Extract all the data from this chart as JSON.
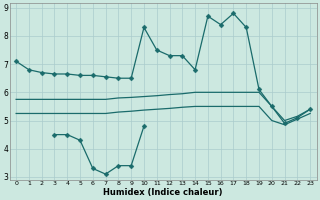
{
  "xlabel": "Humidex (Indice chaleur)",
  "x": [
    0,
    1,
    2,
    3,
    4,
    5,
    6,
    7,
    8,
    9,
    10,
    11,
    12,
    13,
    14,
    15,
    16,
    17,
    18,
    19,
    20,
    21,
    22,
    23
  ],
  "line1": [
    7.1,
    6.8,
    6.7,
    6.65,
    6.65,
    6.6,
    6.6,
    6.55,
    6.5,
    6.5,
    8.3,
    7.5,
    7.3,
    7.3,
    6.8,
    8.7,
    8.4,
    8.8,
    8.3,
    6.1,
    5.5,
    4.9,
    5.1,
    5.4
  ],
  "line2": [
    5.75,
    5.75,
    5.75,
    5.75,
    5.75,
    5.75,
    5.75,
    5.75,
    5.8,
    5.82,
    5.85,
    5.88,
    5.92,
    5.95,
    6.0,
    6.0,
    6.0,
    6.0,
    6.0,
    6.0,
    5.5,
    5.0,
    5.15,
    5.4
  ],
  "line4": [
    5.25,
    5.25,
    5.25,
    5.25,
    5.25,
    5.25,
    5.25,
    5.25,
    5.3,
    5.33,
    5.37,
    5.4,
    5.43,
    5.47,
    5.5,
    5.5,
    5.5,
    5.5,
    5.5,
    5.5,
    5.0,
    4.85,
    5.05,
    5.25
  ],
  "line3_x": [
    3,
    4,
    5,
    6,
    7,
    8,
    9,
    10
  ],
  "line3_y": [
    4.5,
    4.5,
    4.3,
    3.3,
    3.1,
    3.4,
    3.4,
    4.8
  ],
  "ylim": [
    2.9,
    9.15
  ],
  "yticks": [
    3,
    4,
    5,
    6,
    7,
    8,
    9
  ],
  "xlim": [
    -0.5,
    23.5
  ],
  "xticks": [
    0,
    1,
    2,
    3,
    4,
    5,
    6,
    7,
    8,
    9,
    10,
    11,
    12,
    13,
    14,
    15,
    16,
    17,
    18,
    19,
    20,
    21,
    22,
    23
  ],
  "bg_color": "#cce8e0",
  "grid_color": "#aacccc",
  "line_color": "#1a6b6b",
  "markersize": 2.5,
  "linewidth": 0.9
}
